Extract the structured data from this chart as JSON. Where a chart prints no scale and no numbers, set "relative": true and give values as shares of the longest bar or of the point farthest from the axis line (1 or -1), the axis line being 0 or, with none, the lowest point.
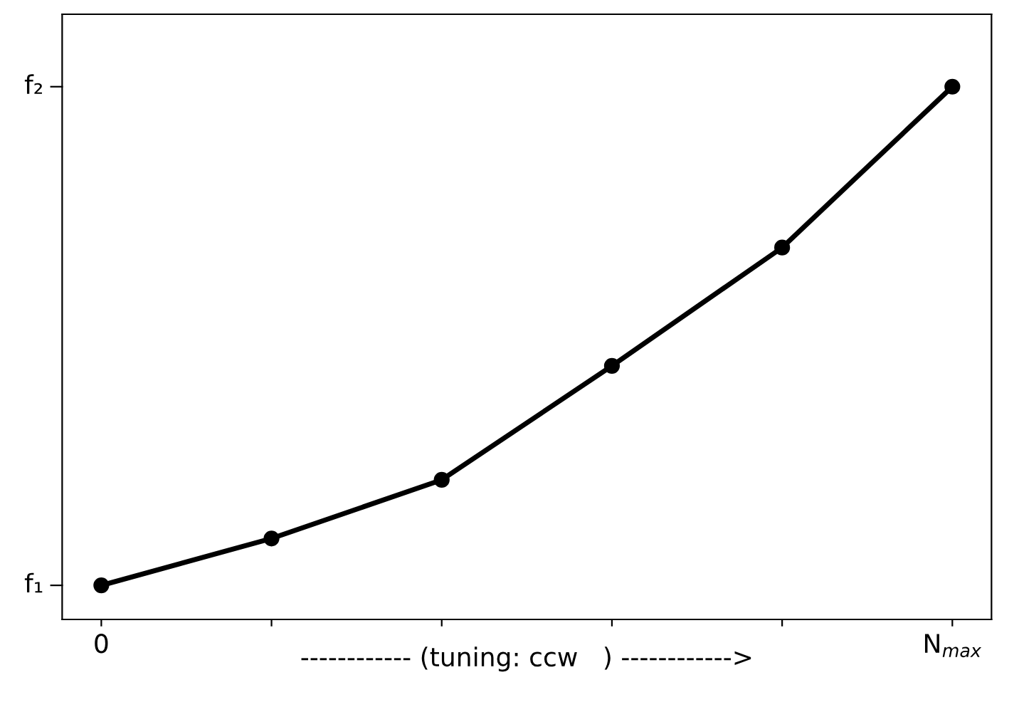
{
  "chart_data": {
    "type": "line",
    "relative": true,
    "categories": [
      "0",
      null,
      null,
      null,
      null,
      "N$_{max}$"
    ],
    "series": [
      {
        "color": "#000000",
        "values": [
          0.064,
          0.152,
          0.262,
          0.476,
          0.698,
          1.0
        ]
      }
    ],
    "annotations": [
      "f₁",
      "f₂",
      "------------ (tuning: ccw   ) ------------>"
    ],
    "marker": "circle",
    "line_style": "solid",
    "grid": false,
    "legend": false
  }
}
